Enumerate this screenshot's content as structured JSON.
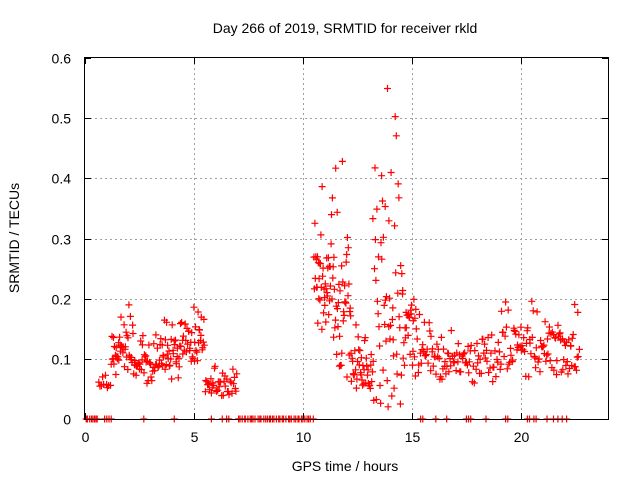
{
  "chart_data": {
    "type": "scatter",
    "title": "Day 266 of 2019, SRMTID for receiver rkld",
    "xlabel": "GPS time / hours",
    "ylabel": "SRMTID / TECUs",
    "xlim": [
      0,
      24
    ],
    "ylim": [
      0,
      0.6
    ],
    "xticks": [
      0,
      5,
      10,
      15,
      20
    ],
    "xtick_labels": [
      "0",
      "5",
      "10",
      "15",
      "20"
    ],
    "yticks": [
      0,
      0.1,
      0.2,
      0.3,
      0.4,
      0.5,
      0.6
    ],
    "ytick_labels": [
      "0",
      "0.1",
      "0.2",
      "0.3",
      "0.4",
      "0.5",
      "0.6"
    ],
    "grid": true,
    "marker": "+",
    "color": "#ff0000",
    "series": [
      {
        "name": "SRMTID",
        "segments": [
          {
            "t0": 0.0,
            "t1": 0.6,
            "base": 0.0,
            "amp": 0.0,
            "n": 6
          },
          {
            "t0": 0.6,
            "t1": 1.2,
            "base": 0.06,
            "amp": 0.05,
            "n": 10
          },
          {
            "t0": 1.2,
            "t1": 2.2,
            "base": 0.1,
            "amp": 0.1,
            "n": 40
          },
          {
            "t0": 2.2,
            "t1": 3.2,
            "base": 0.08,
            "amp": 0.07,
            "n": 35
          },
          {
            "t0": 3.2,
            "t1": 4.4,
            "base": 0.09,
            "amp": 0.08,
            "n": 45
          },
          {
            "t0": 4.4,
            "t1": 5.5,
            "base": 0.11,
            "amp": 0.08,
            "n": 40
          },
          {
            "t0": 5.5,
            "t1": 6.4,
            "base": 0.05,
            "amp": 0.04,
            "n": 25
          },
          {
            "t0": 6.4,
            "t1": 7.0,
            "base": 0.05,
            "amp": 0.04,
            "n": 15
          },
          {
            "t0": 7.0,
            "t1": 10.5,
            "base": 0.0,
            "amp": 0.0,
            "n": 40
          },
          {
            "t0": 10.5,
            "t1": 11.4,
            "base": 0.2,
            "amp": 0.18,
            "n": 45
          },
          {
            "t0": 11.4,
            "t1": 12.2,
            "base": 0.14,
            "amp": 0.28,
            "n": 40
          },
          {
            "t0": 12.2,
            "t1": 13.2,
            "base": 0.08,
            "amp": 0.1,
            "n": 40
          },
          {
            "t0": 13.2,
            "t1": 14.6,
            "base": 0.12,
            "amp": 0.46,
            "n": 60
          },
          {
            "t0": 14.6,
            "t1": 15.2,
            "base": 0.12,
            "amp": 0.18,
            "n": 25
          },
          {
            "t0": 15.2,
            "t1": 16.8,
            "base": 0.09,
            "amp": 0.08,
            "n": 45
          },
          {
            "t0": 16.8,
            "t1": 19.0,
            "base": 0.08,
            "amp": 0.07,
            "n": 55
          },
          {
            "t0": 19.0,
            "t1": 21.0,
            "base": 0.1,
            "amp": 0.1,
            "n": 55
          },
          {
            "t0": 21.0,
            "t1": 22.7,
            "base": 0.1,
            "amp": 0.1,
            "n": 50
          }
        ],
        "zero_points": [
          0.1,
          0.3,
          0.5,
          0.9,
          1.0,
          1.1,
          1.2,
          2.7,
          4.1,
          5.8,
          6.3,
          6.5,
          6.6,
          15.4,
          15.5,
          16.1,
          16.6,
          17.5,
          17.6,
          17.7,
          18.4,
          19.3,
          19.4,
          20.3,
          20.4,
          20.6,
          20.7,
          21.2,
          21.5,
          21.7,
          21.9,
          22.1
        ]
      }
    ]
  }
}
